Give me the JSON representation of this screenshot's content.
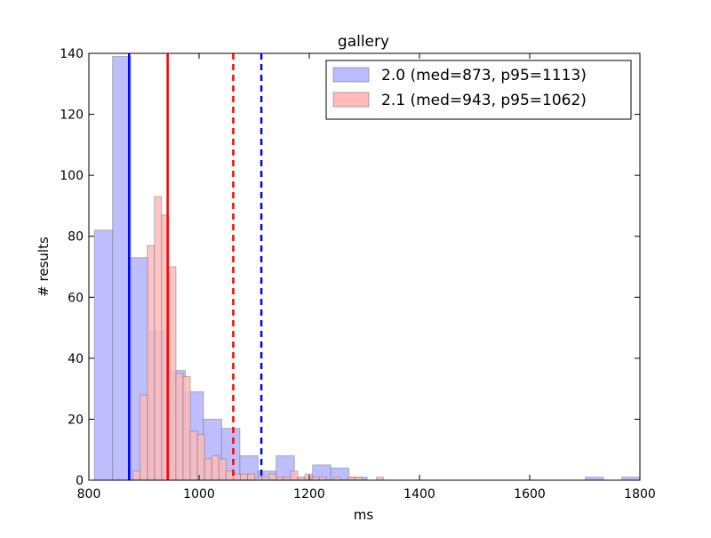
{
  "chart_data": {
    "type": "bar",
    "title": "gallery",
    "xlabel": "ms",
    "ylabel": "# results",
    "xlim": [
      800,
      1800
    ],
    "ylim": [
      0,
      140
    ],
    "xticks": [
      800,
      1000,
      1200,
      1400,
      1600,
      1800
    ],
    "yticks": [
      0,
      20,
      40,
      60,
      80,
      100,
      120,
      140
    ],
    "grid": false,
    "legend_position": "top-right",
    "series": [
      {
        "name": "2.0 (med=873, p95=1113)",
        "color": "#0000ff",
        "fill": "#bbbbff",
        "median": 873,
        "p95": 1113,
        "bins": [
          {
            "x0": 810,
            "x1": 843,
            "count": 82
          },
          {
            "x0": 843,
            "x1": 876,
            "count": 139
          },
          {
            "x0": 876,
            "x1": 909,
            "count": 73
          },
          {
            "x0": 909,
            "x1": 942,
            "count": 49
          },
          {
            "x0": 942,
            "x1": 975,
            "count": 36
          },
          {
            "x0": 975,
            "x1": 1008,
            "count": 29
          },
          {
            "x0": 1008,
            "x1": 1041,
            "count": 20
          },
          {
            "x0": 1041,
            "x1": 1074,
            "count": 17
          },
          {
            "x0": 1074,
            "x1": 1107,
            "count": 8
          },
          {
            "x0": 1107,
            "x1": 1140,
            "count": 3
          },
          {
            "x0": 1140,
            "x1": 1173,
            "count": 8
          },
          {
            "x0": 1173,
            "x1": 1206,
            "count": 1
          },
          {
            "x0": 1206,
            "x1": 1239,
            "count": 5
          },
          {
            "x0": 1239,
            "x1": 1272,
            "count": 4
          },
          {
            "x0": 1272,
            "x1": 1305,
            "count": 1
          },
          {
            "x0": 1305,
            "x1": 1338,
            "count": 0
          },
          {
            "x0": 1338,
            "x1": 1371,
            "count": 0
          },
          {
            "x0": 1371,
            "x1": 1404,
            "count": 0
          },
          {
            "x0": 1404,
            "x1": 1437,
            "count": 0
          },
          {
            "x0": 1437,
            "x1": 1470,
            "count": 0
          },
          {
            "x0": 1470,
            "x1": 1503,
            "count": 0
          },
          {
            "x0": 1503,
            "x1": 1536,
            "count": 0
          },
          {
            "x0": 1536,
            "x1": 1569,
            "count": 0
          },
          {
            "x0": 1569,
            "x1": 1602,
            "count": 0
          },
          {
            "x0": 1602,
            "x1": 1635,
            "count": 0
          },
          {
            "x0": 1635,
            "x1": 1668,
            "count": 0
          },
          {
            "x0": 1668,
            "x1": 1701,
            "count": 0
          },
          {
            "x0": 1701,
            "x1": 1734,
            "count": 1
          },
          {
            "x0": 1734,
            "x1": 1767,
            "count": 0
          },
          {
            "x0": 1767,
            "x1": 1800,
            "count": 1
          }
        ]
      },
      {
        "name": "2.1 (med=943, p95=1062)",
        "color": "#ff0000",
        "fill": "#ffbbbb",
        "median": 943,
        "p95": 1062,
        "bins": [
          {
            "x0": 880,
            "x1": 893,
            "count": 3
          },
          {
            "x0": 893,
            "x1": 906,
            "count": 28
          },
          {
            "x0": 906,
            "x1": 919,
            "count": 77
          },
          {
            "x0": 919,
            "x1": 932,
            "count": 93
          },
          {
            "x0": 932,
            "x1": 945,
            "count": 87
          },
          {
            "x0": 945,
            "x1": 958,
            "count": 70
          },
          {
            "x0": 958,
            "x1": 971,
            "count": 35
          },
          {
            "x0": 971,
            "x1": 984,
            "count": 34
          },
          {
            "x0": 984,
            "x1": 997,
            "count": 16
          },
          {
            "x0": 997,
            "x1": 1010,
            "count": 15
          },
          {
            "x0": 1010,
            "x1": 1023,
            "count": 7
          },
          {
            "x0": 1023,
            "x1": 1036,
            "count": 8
          },
          {
            "x0": 1036,
            "x1": 1049,
            "count": 7
          },
          {
            "x0": 1049,
            "x1": 1062,
            "count": 3
          },
          {
            "x0": 1062,
            "x1": 1075,
            "count": 2
          },
          {
            "x0": 1075,
            "x1": 1088,
            "count": 2
          },
          {
            "x0": 1088,
            "x1": 1101,
            "count": 2
          },
          {
            "x0": 1101,
            "x1": 1114,
            "count": 1
          },
          {
            "x0": 1114,
            "x1": 1127,
            "count": 1
          },
          {
            "x0": 1127,
            "x1": 1140,
            "count": 2
          },
          {
            "x0": 1140,
            "x1": 1153,
            "count": 1
          },
          {
            "x0": 1153,
            "x1": 1166,
            "count": 1
          },
          {
            "x0": 1166,
            "x1": 1179,
            "count": 3
          },
          {
            "x0": 1179,
            "x1": 1192,
            "count": 1
          },
          {
            "x0": 1192,
            "x1": 1205,
            "count": 2
          },
          {
            "x0": 1205,
            "x1": 1218,
            "count": 1
          },
          {
            "x0": 1218,
            "x1": 1231,
            "count": 1
          },
          {
            "x0": 1231,
            "x1": 1244,
            "count": 0
          },
          {
            "x0": 1244,
            "x1": 1257,
            "count": 1
          },
          {
            "x0": 1257,
            "x1": 1270,
            "count": 0
          },
          {
            "x0": 1270,
            "x1": 1283,
            "count": 1
          },
          {
            "x0": 1283,
            "x1": 1296,
            "count": 1
          },
          {
            "x0": 1296,
            "x1": 1309,
            "count": 0
          },
          {
            "x0": 1309,
            "x1": 1322,
            "count": 0
          },
          {
            "x0": 1322,
            "x1": 1335,
            "count": 1
          }
        ]
      }
    ]
  }
}
